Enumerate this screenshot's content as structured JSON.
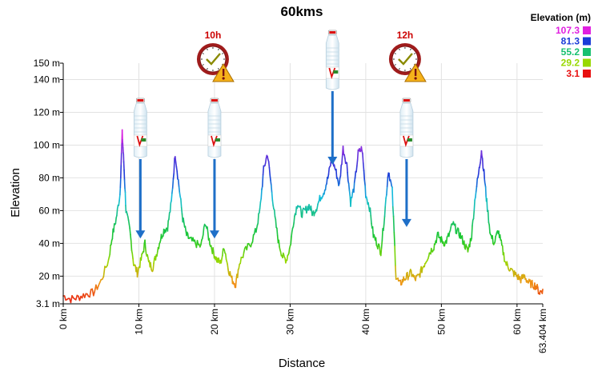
{
  "chart_data": {
    "type": "area",
    "title": "60kms",
    "xlabel": "Distance",
    "ylabel": "Elevation",
    "xlim": [
      0,
      63.404
    ],
    "ylim": [
      3.1,
      150
    ],
    "x_ticks": [
      {
        "value": 0,
        "label": "0 km"
      },
      {
        "value": 10,
        "label": "10 km"
      },
      {
        "value": 20,
        "label": "20 km"
      },
      {
        "value": 30,
        "label": "30 km"
      },
      {
        "value": 40,
        "label": "40 km"
      },
      {
        "value": 50,
        "label": "50 km"
      },
      {
        "value": 60,
        "label": "60 km"
      },
      {
        "value": 63.404,
        "label": "63.404 km"
      }
    ],
    "y_ticks": [
      {
        "value": 3.1,
        "label": "3.1 m"
      },
      {
        "value": 20,
        "label": "20 m"
      },
      {
        "value": 40,
        "label": "40 m"
      },
      {
        "value": 60,
        "label": "60 m"
      },
      {
        "value": 80,
        "label": "80 m"
      },
      {
        "value": 100,
        "label": "100 m"
      },
      {
        "value": 120,
        "label": "120 m"
      },
      {
        "value": 140,
        "label": "140 m"
      },
      {
        "value": 150,
        "label": "150 m"
      }
    ],
    "grid": true,
    "legend": {
      "title": "Elevation (m)",
      "position": "top-right",
      "entries": [
        {
          "label": "107.3",
          "color": "#e020e0"
        },
        {
          "label": "81.3",
          "color": "#1a3cd8"
        },
        {
          "label": "55.2",
          "color": "#18c070"
        },
        {
          "label": "29.2",
          "color": "#98d800"
        },
        {
          "label": "3.1",
          "color": "#e81010"
        }
      ]
    },
    "profile": {
      "x": [
        0,
        1,
        2,
        3,
        4,
        5,
        6,
        6.5,
        7,
        7.5,
        7.8,
        8.0,
        8.3,
        8.8,
        9.3,
        9.8,
        10.3,
        10.8,
        11.3,
        11.8,
        12.3,
        12.8,
        13.3,
        13.8,
        14.3,
        14.8,
        15.3,
        15.8,
        16.3,
        16.8,
        17.5,
        18.2,
        18.8,
        19.3,
        19.8,
        20.3,
        20.8,
        21.3,
        21.8,
        22.3,
        22.8,
        23.3,
        24,
        24.8,
        25.5,
        26,
        26.5,
        27,
        27.5,
        28,
        28.5,
        29,
        29.5,
        30,
        30.5,
        31,
        31.5,
        32,
        32.5,
        33,
        33.5,
        34,
        34.5,
        35,
        35.5,
        36,
        36.5,
        37,
        37.5,
        38,
        38.5,
        39,
        39.5,
        40,
        40.5,
        41,
        41.5,
        42,
        42.5,
        43,
        43.5,
        44,
        44.5,
        45,
        45.5,
        46,
        46.5,
        47,
        47.5,
        48,
        48.5,
        49,
        49.5,
        50,
        50.5,
        51,
        51.5,
        52,
        52.5,
        53,
        53.5,
        54,
        54.5,
        55,
        55.3,
        55.7,
        56,
        56.5,
        57,
        57.5,
        58,
        58.5,
        59,
        59.5,
        60,
        60.5,
        61,
        61.5,
        62,
        62.5,
        63,
        63.404
      ],
      "y": [
        8,
        6,
        7,
        9,
        10,
        17,
        30,
        45,
        55,
        70,
        107,
        90,
        60,
        48,
        28,
        22,
        30,
        40,
        28,
        25,
        33,
        42,
        48,
        50,
        65,
        95,
        75,
        55,
        45,
        42,
        40,
        38,
        53,
        42,
        35,
        30,
        28,
        38,
        25,
        18,
        15,
        28,
        35,
        40,
        48,
        60,
        85,
        95,
        75,
        55,
        40,
        32,
        30,
        38,
        55,
        65,
        58,
        60,
        63,
        58,
        62,
        68,
        72,
        80,
        92,
        85,
        75,
        98,
        88,
        65,
        75,
        95,
        98,
        70,
        62,
        45,
        40,
        35,
        58,
        85,
        72,
        20,
        15,
        18,
        20,
        22,
        18,
        20,
        25,
        30,
        35,
        38,
        45,
        42,
        40,
        45,
        52,
        48,
        45,
        40,
        35,
        45,
        70,
        85,
        97,
        80,
        65,
        45,
        40,
        48,
        38,
        28,
        25,
        22,
        20,
        18,
        20,
        16,
        15,
        14,
        10,
        12
      ]
    },
    "markers": [
      {
        "type": "bottle",
        "at_km": 10.2,
        "arrow_to": 43
      },
      {
        "type": "bottle",
        "at_km": 20.0,
        "arrow_to": 43
      },
      {
        "type": "bottle",
        "at_km": 35.6,
        "arrow_to": 88
      },
      {
        "type": "bottle",
        "at_km": 45.4,
        "arrow_to": 50
      },
      {
        "type": "clock-warning",
        "label": "10h",
        "at_km": 20.0
      },
      {
        "type": "clock-warning",
        "label": "12h",
        "at_km": 45.4
      }
    ]
  }
}
